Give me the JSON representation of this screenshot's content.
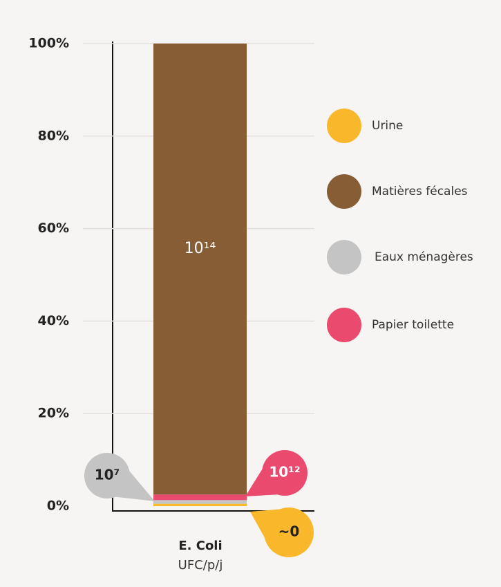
{
  "chart_data": {
    "type": "stacked_bar",
    "categories": [
      "E. Coli"
    ],
    "unit": "UFC/p/j",
    "ylim": [
      0,
      100
    ],
    "yticks": [
      {
        "value": 0,
        "label": "0%"
      },
      {
        "value": 20,
        "label": "20%"
      },
      {
        "value": 40,
        "label": "40%"
      },
      {
        "value": 60,
        "label": "60%"
      },
      {
        "value": 80,
        "label": "80%"
      },
      {
        "value": 100,
        "label": "100%"
      }
    ],
    "grid": true,
    "legend": "right",
    "stack_order": [
      0,
      2,
      3,
      1
    ],
    "series": [
      {
        "name": "Urine",
        "color": "#f9b72c",
        "values": [
          0.5
        ],
        "annotation": "~0"
      },
      {
        "name": "Matières fécales",
        "color": "#875d35",
        "values": [
          97.5
        ],
        "annotation": "10¹⁴"
      },
      {
        "name": "Eaux ménagères",
        "color": "#c4c4c4",
        "values": [
          0.8
        ],
        "annotation": "10⁷"
      },
      {
        "name": "Papier toilette",
        "color": "#e94a6e",
        "values": [
          1.2
        ],
        "annotation": "10¹²"
      }
    ]
  }
}
